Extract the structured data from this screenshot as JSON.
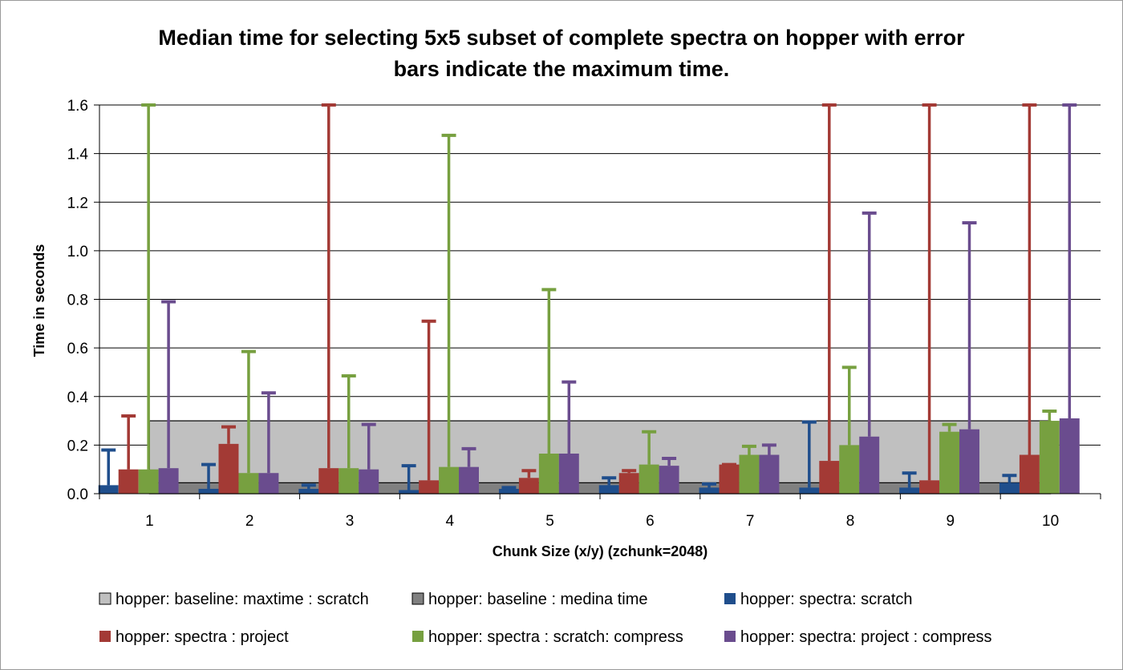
{
  "chart_data": {
    "type": "bar",
    "title_lines": [
      "Median time for selecting 5x5 subset of complete spectra on hopper with error",
      "bars indicate the maximum time."
    ],
    "xlabel": "Chunk Size (x/y) (zchunk=2048)",
    "ylabel": "Time in seconds",
    "categories": [
      "1",
      "2",
      "3",
      "4",
      "5",
      "6",
      "7",
      "8",
      "9",
      "10"
    ],
    "ylim": [
      0,
      1.6
    ],
    "y_ticks": [
      "0.0",
      "0.2",
      "0.4",
      "0.6",
      "0.8",
      "1.0",
      "1.2",
      "1.4",
      "1.6"
    ],
    "grid": "horizontal",
    "legend_position": "bottom",
    "baseline_series": [
      {
        "name": "hopper: baseline: maxtime : scratch",
        "value": 0.3,
        "color": "#c0c0c0"
      },
      {
        "name": "hopper: baseline : medina time",
        "value": 0.045,
        "color": "#808080"
      }
    ],
    "series": [
      {
        "name": "hopper: spectra: scratch",
        "color": "#1f4e8c",
        "values": [
          0.035,
          0.02,
          0.02,
          0.015,
          0.02,
          0.035,
          0.025,
          0.025,
          0.025,
          0.045
        ],
        "max": [
          0.18,
          0.12,
          0.035,
          0.115,
          0.025,
          0.065,
          0.04,
          0.295,
          0.085,
          0.075
        ]
      },
      {
        "name": "hopper: spectra : project",
        "color": "#a33a35",
        "values": [
          0.1,
          0.205,
          0.105,
          0.055,
          0.065,
          0.085,
          0.12,
          0.135,
          0.055,
          0.16
        ],
        "max": [
          0.32,
          0.275,
          1.6,
          0.71,
          0.095,
          0.095,
          0.12,
          1.6,
          1.6,
          1.6
        ]
      },
      {
        "name": "hopper: spectra : scratch: compress",
        "color": "#77a040",
        "values": [
          0.1,
          0.085,
          0.105,
          0.11,
          0.165,
          0.12,
          0.16,
          0.2,
          0.255,
          0.3
        ],
        "max": [
          1.6,
          0.585,
          0.485,
          1.475,
          0.84,
          0.255,
          0.195,
          0.52,
          0.285,
          0.34
        ]
      },
      {
        "name": "hopper: spectra: project : compress",
        "color": "#6a4c8e",
        "values": [
          0.105,
          0.085,
          0.1,
          0.11,
          0.165,
          0.115,
          0.16,
          0.235,
          0.265,
          0.31
        ],
        "max": [
          0.79,
          0.415,
          0.285,
          0.185,
          0.46,
          0.145,
          0.2,
          1.155,
          1.115,
          1.6
        ]
      }
    ]
  }
}
